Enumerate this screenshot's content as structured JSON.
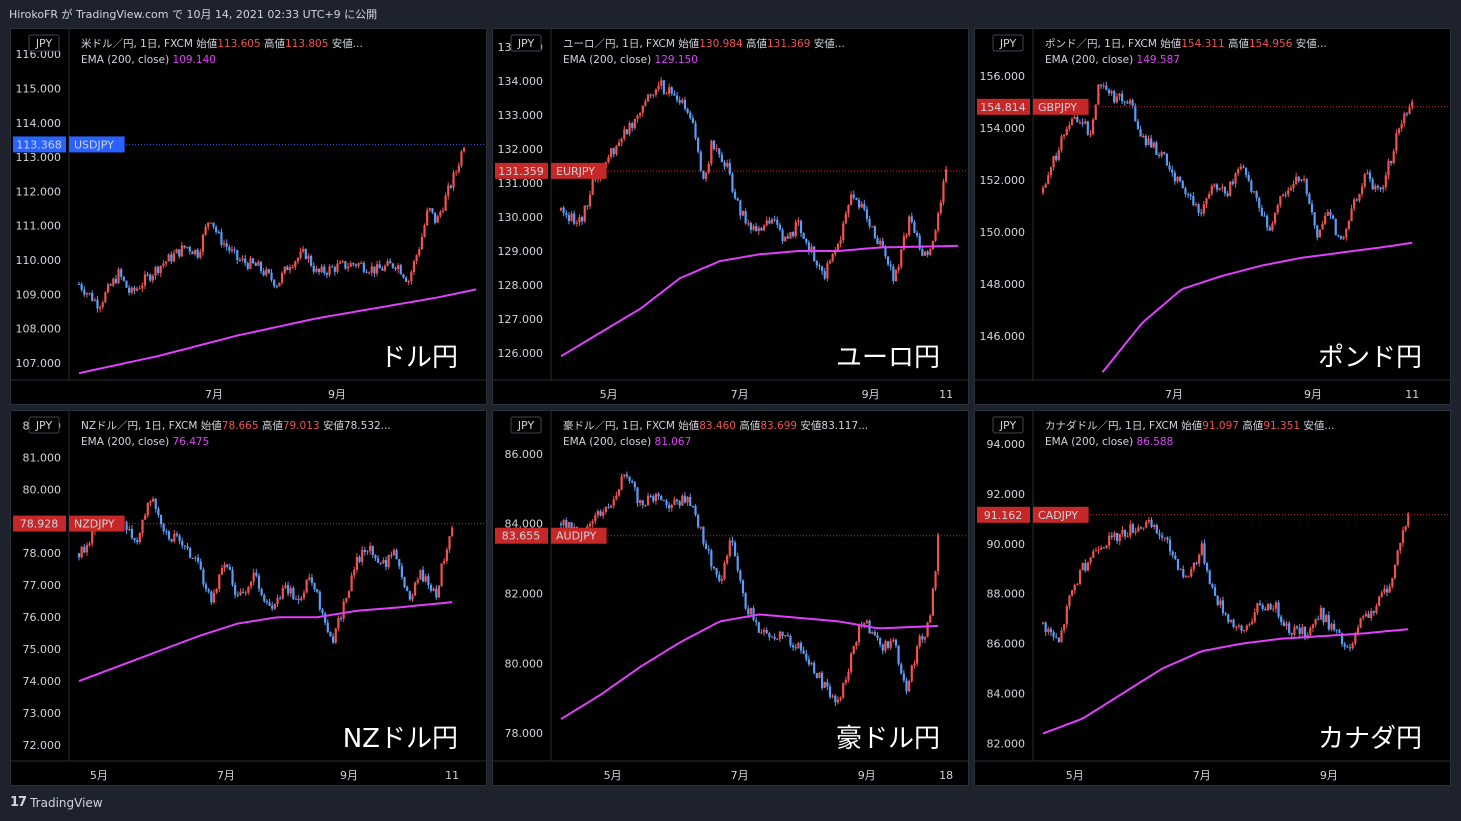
{
  "page": {
    "title": "HirokoFR が TradingView.com で 10月 14, 2021 02:33 UTC+9 に公開",
    "footer": "TradingView"
  },
  "colors": {
    "up": "#ef5350",
    "down": "#5b9cf6",
    "ema": "#e040fb",
    "background": "#000000"
  },
  "chart_data": [
    {
      "type": "candlestick",
      "symbol": "USDJPY",
      "currency": "JPY",
      "header": "米ドル／円, 1日, FXCM",
      "open_label": "始値",
      "open": "113.605",
      "high_label": "高値",
      "high": "113.805",
      "low_label": "安値...",
      "ema_label": "EMA (200, close)",
      "ema_value": "109.140",
      "price_label": "113.368",
      "price_value": 113.368,
      "badge_color": "#2962ff",
      "label": "ドル円",
      "ylim": [
        106.5,
        116.5
      ],
      "yticks": [
        107,
        108,
        109,
        110,
        111,
        112,
        113,
        114,
        115,
        116
      ],
      "ytick_labels": [
        "107.000",
        "108.000",
        "109.000",
        "110.000",
        "111.000",
        "112.000",
        "113.000",
        "114.000",
        "115.000",
        "116.000"
      ],
      "xticks": [
        {
          "t": 0.34,
          "label": "7月"
        },
        {
          "t": 0.65,
          "label": "9月"
        }
      ],
      "path": [
        [
          0,
          109.3
        ],
        [
          0.05,
          108.7
        ],
        [
          0.1,
          109.6
        ],
        [
          0.13,
          109.0
        ],
        [
          0.2,
          109.8
        ],
        [
          0.27,
          110.4
        ],
        [
          0.3,
          110.2
        ],
        [
          0.33,
          111.3
        ],
        [
          0.35,
          110.7
        ],
        [
          0.4,
          110.0
        ],
        [
          0.45,
          109.8
        ],
        [
          0.5,
          109.3
        ],
        [
          0.53,
          109.9
        ],
        [
          0.57,
          110.2
        ],
        [
          0.6,
          109.6
        ],
        [
          0.65,
          109.8
        ],
        [
          0.7,
          109.9
        ],
        [
          0.75,
          109.7
        ],
        [
          0.8,
          109.9
        ],
        [
          0.83,
          109.4
        ],
        [
          0.86,
          110.5
        ],
        [
          0.88,
          111.5
        ],
        [
          0.9,
          111.1
        ],
        [
          0.93,
          112.0
        ],
        [
          0.95,
          112.6
        ],
        [
          0.97,
          113.4
        ]
      ],
      "ema": [
        [
          0,
          106.7
        ],
        [
          0.2,
          107.2
        ],
        [
          0.4,
          107.8
        ],
        [
          0.6,
          108.3
        ],
        [
          0.8,
          108.7
        ],
        [
          0.9,
          108.9
        ],
        [
          1,
          109.14
        ]
      ]
    },
    {
      "type": "candlestick",
      "symbol": "EURJPY",
      "currency": "JPY",
      "header": "ユーロ／円, 1日, FXCM",
      "open_label": "始値",
      "open": "130.984",
      "high_label": "高値",
      "high": "131.369",
      "low_label": "安値...",
      "ema_label": "EMA (200, close)",
      "ema_value": "129.150",
      "price_label": "131.359",
      "price_value": 131.359,
      "badge_color": "#c62828",
      "label": "ユーロ円",
      "ylim": [
        125.2,
        135.3
      ],
      "yticks": [
        126,
        127,
        128,
        129,
        130,
        131,
        132,
        133,
        134,
        135
      ],
      "ytick_labels": [
        "126.000",
        "127.000",
        "128.000",
        "129.000",
        "130.000",
        "131.000",
        "132.000",
        "133.000",
        "134.000",
        "135.000"
      ],
      "xticks": [
        {
          "t": 0.12,
          "label": "5月"
        },
        {
          "t": 0.45,
          "label": "7月"
        },
        {
          "t": 0.78,
          "label": "9月"
        },
        {
          "t": 0.97,
          "label": "11"
        }
      ],
      "path": [
        [
          0,
          130.2
        ],
        [
          0.05,
          129.8
        ],
        [
          0.08,
          131.0
        ],
        [
          0.12,
          131.8
        ],
        [
          0.15,
          132.3
        ],
        [
          0.18,
          132.8
        ],
        [
          0.22,
          133.6
        ],
        [
          0.25,
          133.9
        ],
        [
          0.3,
          133.4
        ],
        [
          0.33,
          132.8
        ],
        [
          0.36,
          131.0
        ],
        [
          0.38,
          132.2
        ],
        [
          0.42,
          131.4
        ],
        [
          0.45,
          130.1
        ],
        [
          0.5,
          129.5
        ],
        [
          0.53,
          130.0
        ],
        [
          0.56,
          129.3
        ],
        [
          0.6,
          129.8
        ],
        [
          0.63,
          129.0
        ],
        [
          0.66,
          128.2
        ],
        [
          0.7,
          129.3
        ],
        [
          0.73,
          130.5
        ],
        [
          0.76,
          130.2
        ],
        [
          0.8,
          129.3
        ],
        [
          0.84,
          128.2
        ],
        [
          0.88,
          130.0
        ],
        [
          0.91,
          128.8
        ],
        [
          0.94,
          129.2
        ],
        [
          0.97,
          131.4
        ]
      ],
      "ema": [
        [
          0,
          125.9
        ],
        [
          0.1,
          126.6
        ],
        [
          0.2,
          127.3
        ],
        [
          0.3,
          128.2
        ],
        [
          0.4,
          128.7
        ],
        [
          0.5,
          128.9
        ],
        [
          0.6,
          129.0
        ],
        [
          0.7,
          129.0
        ],
        [
          0.8,
          129.1
        ],
        [
          1,
          129.15
        ]
      ]
    },
    {
      "type": "candlestick",
      "symbol": "GBPJPY",
      "currency": "JPY",
      "header": "ポンド／円, 1日, FXCM",
      "open_label": "始値",
      "open": "154.311",
      "high_label": "高値",
      "high": "154.956",
      "low_label": "安値...",
      "ema_label": "EMA (200, close)",
      "ema_value": "149.587",
      "price_label": "154.814",
      "price_value": 154.814,
      "badge_color": "#c62828",
      "label": "ポンド円",
      "ylim": [
        144.3,
        157.5
      ],
      "yticks": [
        146,
        148,
        150,
        152,
        154,
        156
      ],
      "ytick_labels": [
        "146.000",
        "148.000",
        "150.000",
        "152.000",
        "154.000",
        "156.000"
      ],
      "xticks": [
        {
          "t": 0.33,
          "label": "7月"
        },
        {
          "t": 0.68,
          "label": "9月"
        },
        {
          "t": 0.93,
          "label": "11"
        }
      ],
      "path": [
        [
          0,
          151.5
        ],
        [
          0.04,
          153.3
        ],
        [
          0.08,
          154.5
        ],
        [
          0.12,
          153.8
        ],
        [
          0.14,
          155.8
        ],
        [
          0.18,
          155.2
        ],
        [
          0.22,
          155.0
        ],
        [
          0.25,
          153.6
        ],
        [
          0.3,
          153.0
        ],
        [
          0.33,
          152.0
        ],
        [
          0.36,
          151.6
        ],
        [
          0.4,
          150.6
        ],
        [
          0.43,
          152.0
        ],
        [
          0.46,
          151.4
        ],
        [
          0.5,
          152.5
        ],
        [
          0.54,
          151.2
        ],
        [
          0.57,
          150.0
        ],
        [
          0.6,
          151.3
        ],
        [
          0.63,
          152.0
        ],
        [
          0.66,
          151.8
        ],
        [
          0.69,
          149.8
        ],
        [
          0.72,
          150.8
        ],
        [
          0.75,
          149.5
        ],
        [
          0.78,
          151.0
        ],
        [
          0.81,
          152.2
        ],
        [
          0.85,
          151.5
        ],
        [
          0.88,
          153.0
        ],
        [
          0.9,
          154.2
        ],
        [
          0.93,
          154.8
        ]
      ],
      "ema": [
        [
          0.15,
          144.6
        ],
        [
          0.25,
          146.5
        ],
        [
          0.35,
          147.8
        ],
        [
          0.45,
          148.3
        ],
        [
          0.55,
          148.7
        ],
        [
          0.65,
          149.0
        ],
        [
          0.75,
          149.2
        ],
        [
          0.85,
          149.4
        ],
        [
          0.93,
          149.58
        ]
      ]
    },
    {
      "type": "candlestick",
      "symbol": "NZDJPY",
      "currency": "JPY",
      "header": "NZドル／円, 1日, FXCM",
      "open_label": "始値",
      "open": "78.665",
      "high_label": "高値",
      "high": "79.013",
      "low_label": "安値78.532...",
      "ema_label": "EMA (200, close)",
      "ema_value": "76.475",
      "price_label": "78.928",
      "price_value": 78.928,
      "badge_color": "#c62828",
      "label": "NZドル円",
      "ylim": [
        71.5,
        82.2
      ],
      "yticks": [
        72,
        73,
        74,
        75,
        76,
        77,
        78,
        79,
        80,
        81,
        82
      ],
      "ytick_labels": [
        "72.000",
        "73.000",
        "74.000",
        "75.000",
        "76.000",
        "77.000",
        "78.000",
        "79.000",
        "80.000",
        "81.000",
        "82.000"
      ],
      "xticks": [
        {
          "t": 0.05,
          "label": "5月"
        },
        {
          "t": 0.37,
          "label": "7月"
        },
        {
          "t": 0.68,
          "label": "9月"
        },
        {
          "t": 0.94,
          "label": "11"
        }
      ],
      "path": [
        [
          0,
          78.0
        ],
        [
          0.05,
          78.8
        ],
        [
          0.1,
          79.0
        ],
        [
          0.15,
          78.4
        ],
        [
          0.18,
          79.8
        ],
        [
          0.22,
          78.6
        ],
        [
          0.26,
          78.3
        ],
        [
          0.3,
          77.6
        ],
        [
          0.33,
          76.5
        ],
        [
          0.37,
          77.8
        ],
        [
          0.4,
          76.6
        ],
        [
          0.44,
          77.3
        ],
        [
          0.48,
          76.3
        ],
        [
          0.52,
          77.0
        ],
        [
          0.55,
          76.4
        ],
        [
          0.58,
          77.3
        ],
        [
          0.61,
          76.3
        ],
        [
          0.64,
          75.2
        ],
        [
          0.67,
          76.6
        ],
        [
          0.7,
          77.8
        ],
        [
          0.73,
          78.2
        ],
        [
          0.76,
          77.6
        ],
        [
          0.8,
          78.0
        ],
        [
          0.83,
          76.5
        ],
        [
          0.86,
          77.4
        ],
        [
          0.9,
          76.8
        ],
        [
          0.94,
          78.9
        ]
      ],
      "ema": [
        [
          0,
          74.0
        ],
        [
          0.15,
          74.7
        ],
        [
          0.3,
          75.4
        ],
        [
          0.4,
          75.8
        ],
        [
          0.5,
          76.0
        ],
        [
          0.6,
          76.0
        ],
        [
          0.7,
          76.2
        ],
        [
          0.8,
          76.3
        ],
        [
          0.94,
          76.47
        ]
      ]
    },
    {
      "type": "candlestick",
      "symbol": "AUDJPY",
      "currency": "JPY",
      "header": "豪ドル／円, 1日, FXCM",
      "open_label": "始値",
      "open": "83.460",
      "high_label": "高値",
      "high": "83.699",
      "low_label": "安値83.117...",
      "ema_label": "EMA (200, close)",
      "ema_value": "81.067",
      "price_label": "83.655",
      "price_value": 83.655,
      "badge_color": "#c62828",
      "label": "豪ドル円",
      "ylim": [
        77.2,
        87.0
      ],
      "yticks": [
        78,
        80,
        82,
        84,
        86
      ],
      "ytick_labels": [
        "78.000",
        "80.000",
        "82.000",
        "84.000",
        "86.000"
      ],
      "xticks": [
        {
          "t": 0.13,
          "label": "5月"
        },
        {
          "t": 0.45,
          "label": "7月"
        },
        {
          "t": 0.77,
          "label": "9月"
        },
        {
          "t": 0.97,
          "label": "18"
        }
      ],
      "path": [
        [
          0,
          84.0
        ],
        [
          0.05,
          83.7
        ],
        [
          0.08,
          84.2
        ],
        [
          0.12,
          84.5
        ],
        [
          0.16,
          85.4
        ],
        [
          0.2,
          84.6
        ],
        [
          0.24,
          84.8
        ],
        [
          0.28,
          84.5
        ],
        [
          0.32,
          84.8
        ],
        [
          0.36,
          83.5
        ],
        [
          0.4,
          82.2
        ],
        [
          0.43,
          83.6
        ],
        [
          0.46,
          81.8
        ],
        [
          0.5,
          81.0
        ],
        [
          0.54,
          80.8
        ],
        [
          0.58,
          80.6
        ],
        [
          0.62,
          80.2
        ],
        [
          0.66,
          79.4
        ],
        [
          0.7,
          78.8
        ],
        [
          0.73,
          80.2
        ],
        [
          0.76,
          81.3
        ],
        [
          0.8,
          80.5
        ],
        [
          0.84,
          80.6
        ],
        [
          0.87,
          79.2
        ],
        [
          0.9,
          80.6
        ],
        [
          0.93,
          81.2
        ],
        [
          0.95,
          83.6
        ]
      ],
      "ema": [
        [
          0,
          78.4
        ],
        [
          0.1,
          79.1
        ],
        [
          0.2,
          79.9
        ],
        [
          0.3,
          80.6
        ],
        [
          0.4,
          81.2
        ],
        [
          0.5,
          81.4
        ],
        [
          0.6,
          81.3
        ],
        [
          0.7,
          81.2
        ],
        [
          0.8,
          81.0
        ],
        [
          0.95,
          81.07
        ]
      ]
    },
    {
      "type": "candlestick",
      "symbol": "CADJPY",
      "currency": "JPY",
      "header": "カナダドル／円, 1日, FXCM",
      "open_label": "始値",
      "open": "91.097",
      "high_label": "高値",
      "high": "91.351",
      "low_label": "安値...",
      "ema_label": "EMA (200, close)",
      "ema_value": "86.588",
      "price_label": "91.162",
      "price_value": 91.162,
      "badge_color": "#c62828",
      "label": "カナダ円",
      "ylim": [
        81.3,
        95.0
      ],
      "yticks": [
        82,
        84,
        86,
        88,
        90,
        92,
        94
      ],
      "ytick_labels": [
        "82.000",
        "84.000",
        "86.000",
        "88.000",
        "90.000",
        "92.000",
        "94.000"
      ],
      "xticks": [
        {
          "t": 0.08,
          "label": "5月"
        },
        {
          "t": 0.4,
          "label": "7月"
        },
        {
          "t": 0.72,
          "label": "9月"
        }
      ],
      "path": [
        [
          0,
          86.8
        ],
        [
          0.04,
          86.0
        ],
        [
          0.07,
          88.0
        ],
        [
          0.1,
          89.0
        ],
        [
          0.14,
          90.0
        ],
        [
          0.18,
          90.2
        ],
        [
          0.22,
          90.6
        ],
        [
          0.26,
          90.8
        ],
        [
          0.3,
          90.3
        ],
        [
          0.33,
          89.5
        ],
        [
          0.36,
          88.6
        ],
        [
          0.4,
          89.8
        ],
        [
          0.43,
          88.0
        ],
        [
          0.46,
          87.2
        ],
        [
          0.5,
          86.4
        ],
        [
          0.54,
          87.4
        ],
        [
          0.58,
          87.6
        ],
        [
          0.62,
          86.6
        ],
        [
          0.66,
          86.4
        ],
        [
          0.7,
          87.2
        ],
        [
          0.74,
          86.4
        ],
        [
          0.77,
          85.6
        ],
        [
          0.8,
          86.8
        ],
        [
          0.84,
          87.6
        ],
        [
          0.88,
          88.6
        ],
        [
          0.9,
          90.2
        ],
        [
          0.92,
          91.1
        ]
      ],
      "ema": [
        [
          0,
          82.4
        ],
        [
          0.1,
          83.0
        ],
        [
          0.2,
          84.0
        ],
        [
          0.3,
          85.0
        ],
        [
          0.4,
          85.7
        ],
        [
          0.5,
          86.0
        ],
        [
          0.6,
          86.2
        ],
        [
          0.7,
          86.3
        ],
        [
          0.8,
          86.4
        ],
        [
          0.92,
          86.58
        ]
      ]
    }
  ]
}
